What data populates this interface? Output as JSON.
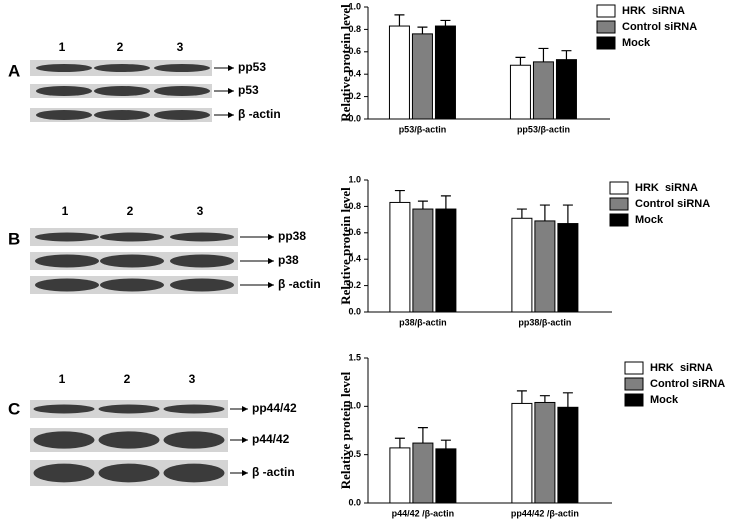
{
  "chart_data": [
    {
      "type": "bar",
      "y_label": "Relative protein level",
      "categories": [
        "p53/β-actin",
        "pp53/β-actin"
      ],
      "series": [
        {
          "name": "HRK  siRNA",
          "color": "#ffffff",
          "values": [
            0.83,
            0.48
          ],
          "errors": [
            0.1,
            0.07
          ]
        },
        {
          "name": "Control siRNA",
          "color": "#808080",
          "values": [
            0.76,
            0.51
          ],
          "errors": [
            0.06,
            0.12
          ]
        },
        {
          "name": "Mock",
          "color": "#000000",
          "values": [
            0.83,
            0.53
          ],
          "errors": [
            0.05,
            0.08
          ]
        }
      ],
      "ylim": [
        0,
        1
      ],
      "yticks": [
        {
          "value": 0,
          "label": "0.0"
        },
        0.2,
        0.4,
        0.6,
        0.8,
        {
          "value": 1,
          "label": "1.0"
        }
      ]
    },
    {
      "type": "bar",
      "y_label": "Relative protein level",
      "categories": [
        "p38/β-actin",
        "pp38/β-actin"
      ],
      "series": [
        {
          "name": "HRK  siRNA",
          "color": "#ffffff",
          "values": [
            0.83,
            0.71
          ],
          "errors": [
            0.09,
            0.07
          ]
        },
        {
          "name": "Control siRNA",
          "color": "#808080",
          "values": [
            0.78,
            0.69
          ],
          "errors": [
            0.06,
            0.12
          ]
        },
        {
          "name": "Mock",
          "color": "#000000",
          "values": [
            0.78,
            0.67
          ],
          "errors": [
            0.1,
            0.14
          ]
        }
      ],
      "ylim": [
        0,
        1
      ],
      "yticks": [
        {
          "value": 0,
          "label": "0.0"
        },
        0.2,
        0.4,
        0.6,
        0.8,
        {
          "value": 1,
          "label": "1.0"
        }
      ]
    },
    {
      "type": "bar",
      "y_label": "Relative protein level",
      "categories": [
        "p44/42 /β-actin",
        "pp44/42 /β-actin"
      ],
      "series": [
        {
          "name": "HRK  siRNA",
          "color": "#ffffff",
          "values": [
            0.57,
            1.03
          ],
          "errors": [
            0.1,
            0.13
          ]
        },
        {
          "name": "Control siRNA",
          "color": "#808080",
          "values": [
            0.62,
            1.04
          ],
          "errors": [
            0.16,
            0.07
          ]
        },
        {
          "name": "Mock",
          "color": "#000000",
          "values": [
            0.56,
            0.99
          ],
          "errors": [
            0.09,
            0.15
          ]
        }
      ],
      "ylim": [
        0,
        1.5
      ],
      "yticks": [
        {
          "value": 0,
          "label": "0.0"
        },
        0.5,
        {
          "value": 1,
          "label": "1.0"
        },
        1.5
      ]
    }
  ],
  "blots": [
    {
      "letter": "A",
      "lanes": [
        "1",
        "2",
        "3"
      ],
      "bands": [
        "pp53",
        "p53",
        "β -actin"
      ]
    },
    {
      "letter": "B",
      "lanes": [
        "1",
        "2",
        "3"
      ],
      "bands": [
        "pp38",
        "p38",
        "β -actin"
      ]
    },
    {
      "letter": "C",
      "lanes": [
        "1",
        "2",
        "3"
      ],
      "bands": [
        "pp44/42",
        "p44/42",
        "β -actin"
      ]
    }
  ]
}
